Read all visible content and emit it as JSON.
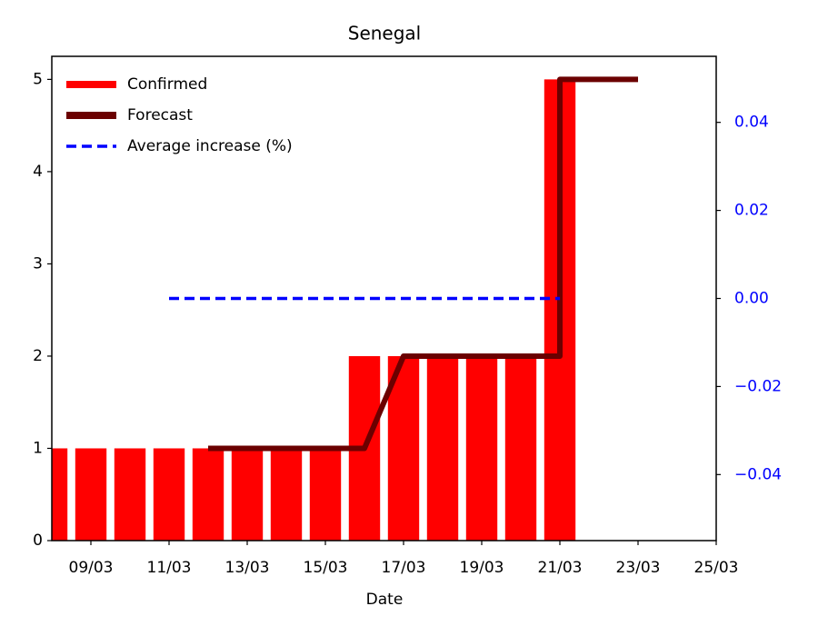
{
  "chart_data": {
    "type": "bar",
    "title": "Senegal",
    "x_label": "Date",
    "series": [
      {
        "name": "Confirmed",
        "type": "bar",
        "color": "#ff0000",
        "x": [
          "08/03",
          "09/03",
          "10/03",
          "11/03",
          "12/03",
          "13/03",
          "14/03",
          "15/03",
          "16/03",
          "17/03",
          "18/03",
          "19/03",
          "20/03",
          "21/03"
        ],
        "values": [
          1,
          1,
          1,
          1,
          1,
          1,
          1,
          1,
          2,
          2,
          2,
          2,
          2,
          5
        ]
      },
      {
        "name": "Forecast",
        "type": "line",
        "color": "#6b0000",
        "x": [
          "12/03",
          "13/03",
          "14/03",
          "15/03",
          "16/03",
          "17/03",
          "18/03",
          "19/03",
          "20/03",
          "21/03",
          "21/03",
          "22/03",
          "23/03"
        ],
        "values": [
          1,
          1,
          1,
          1,
          1,
          2,
          2,
          2,
          2,
          2,
          5,
          5,
          5
        ]
      },
      {
        "name": "Average increase (%)",
        "type": "line",
        "color": "#0000ff",
        "linestyle": "dashed",
        "axis": "y2",
        "x": [
          "11/03",
          "12/03",
          "13/03",
          "14/03",
          "15/03",
          "16/03",
          "17/03",
          "18/03",
          "19/03",
          "20/03",
          "21/03"
        ],
        "values": [
          0,
          0,
          0,
          0,
          0,
          0,
          0,
          0,
          0,
          0,
          0
        ]
      }
    ],
    "xlim": [
      "08/03",
      "25/03"
    ],
    "xticks": [
      "09/03",
      "11/03",
      "13/03",
      "15/03",
      "17/03",
      "19/03",
      "21/03",
      "23/03",
      "25/03"
    ],
    "ylim": [
      0,
      5.25
    ],
    "yticks": [
      0,
      1,
      2,
      3,
      4,
      5
    ],
    "y2lim": [
      -0.055,
      0.055
    ],
    "y2ticks": [
      {
        "value": -0.04,
        "label": "−0.04"
      },
      {
        "value": -0.02,
        "label": "−0.02"
      },
      {
        "value": 0,
        "label": "0.00"
      },
      0.02,
      0.04
    ],
    "y2_color": "#0000ff",
    "legend": "upper left"
  }
}
